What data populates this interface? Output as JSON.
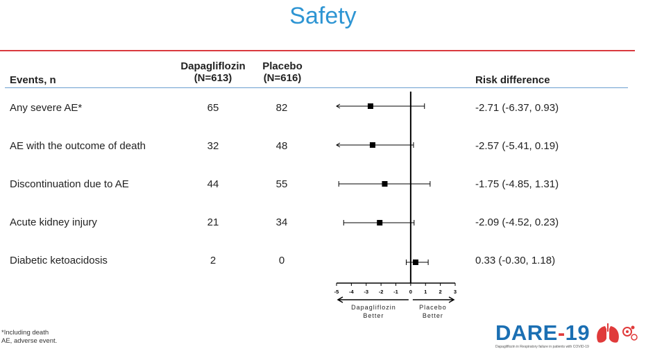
{
  "title": "Safety",
  "header": {
    "events": "Events, n",
    "dapa_name": "Dapagliflozin",
    "dapa_n": "(N=613)",
    "placebo_name": "Placebo",
    "placebo_n": "(N=616)",
    "risk": "Risk difference"
  },
  "rows": [
    {
      "label": "Any severe AE*",
      "dapa": "65",
      "placebo": "82",
      "rd": "-2.71 (-6.37, 0.93)"
    },
    {
      "label": "AE with the outcome of death",
      "dapa": "32",
      "placebo": "48",
      "rd": "-2.57 (-5.41, 0.19)"
    },
    {
      "label": "Discontinuation due to AE",
      "dapa": "44",
      "placebo": "55",
      "rd": "-1.75 (-4.85, 1.31)"
    },
    {
      "label": "Acute kidney injury",
      "dapa": "21",
      "placebo": "34",
      "rd": "-2.09 (-4.52, 0.23)"
    },
    {
      "label": "Diabetic ketoacidosis",
      "dapa": "2",
      "placebo": "0",
      "rd": "0.33 (-0.30, 1.18)"
    }
  ],
  "chart_data": {
    "type": "forest",
    "xlim": [
      -5,
      3
    ],
    "ticks": [
      -5,
      -4,
      -3,
      -2,
      -1,
      0,
      1,
      2,
      3
    ],
    "tick_labels": [
      "-5",
      "-4",
      "-3",
      "-2",
      "-1",
      "0",
      "1",
      "2",
      "3"
    ],
    "reference": 0,
    "left_label": [
      "Dapagliflozin",
      "Better"
    ],
    "right_label": [
      "Placebo",
      "Better"
    ],
    "points": [
      {
        "name": "Any severe AE*",
        "estimate": -2.71,
        "lower": -6.37,
        "upper": 0.93
      },
      {
        "name": "AE with the outcome of death",
        "estimate": -2.57,
        "lower": -5.41,
        "upper": 0.19
      },
      {
        "name": "Discontinuation due to AE",
        "estimate": -1.75,
        "lower": -4.85,
        "upper": 1.31
      },
      {
        "name": "Acute kidney injury",
        "estimate": -2.09,
        "lower": -4.52,
        "upper": 0.23
      },
      {
        "name": "Diabetic ketoacidosis",
        "estimate": 0.33,
        "lower": -0.3,
        "upper": 1.18
      }
    ]
  },
  "footnotes": [
    "*Including death",
    "AE, adverse event."
  ],
  "logo": {
    "text_left": "DARE",
    "text_dash": "-",
    "text_right": "19",
    "small": "Dapagliflozin in Respiratory failure in patients with COVID-19"
  },
  "colors": {
    "title": "#2e95d3",
    "red_rule": "#d9393e",
    "blue_rule": "#6a9fd0",
    "logo_blue": "#1b6fb3",
    "logo_red": "#e03a3a"
  }
}
